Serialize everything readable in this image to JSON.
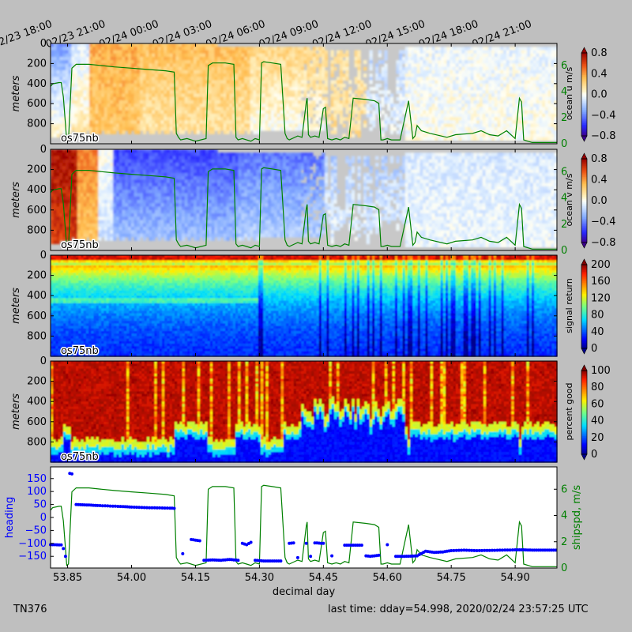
{
  "figure": {
    "top_time_labels": [
      "02/23 18:00",
      "02/23 21:00",
      "02/24 00:00",
      "02/24 03:00",
      "02/24 06:00",
      "02/24 09:00",
      "02/24 12:00",
      "02/24 15:00",
      "02/24 18:00",
      "02/24 21:00"
    ],
    "footer_left": "TN376",
    "footer_right": "last time: dday=54.998,  2020/02/24 23:57:25 UTC",
    "xlabel": "decimal day"
  },
  "chart_data": [
    {
      "type": "heatmap",
      "title": "",
      "ylabel": "meters",
      "instrument_label": "os75nb",
      "ylim": [
        1000,
        0
      ],
      "yticks": [
        0,
        200,
        400,
        600,
        800
      ],
      "colorbar": {
        "label": "ocean u m/s",
        "ticks": [
          "0.8",
          "0.4",
          "0.0",
          "−0.4",
          "−0.8"
        ],
        "range": [
          -0.8,
          0.8
        ],
        "colormap": "bwr"
      },
      "overlay_axis": {
        "ticks": [
          "0",
          "2",
          "4",
          "6"
        ],
        "range": [
          0,
          7.7
        ],
        "color": "#008000"
      },
      "colors": {
        "missing": "#c8c8c8",
        "overlay": "#008000"
      }
    },
    {
      "type": "heatmap",
      "title": "",
      "ylabel": "meters",
      "instrument_label": "os75nb",
      "ylim": [
        1000,
        0
      ],
      "yticks": [
        0,
        200,
        400,
        600,
        800
      ],
      "colorbar": {
        "label": "ocean v m/s",
        "ticks": [
          "0.8",
          "0.4",
          "0.0",
          "−0.4",
          "−0.8"
        ],
        "range": [
          -0.8,
          0.8
        ],
        "colormap": "bwr"
      },
      "overlay_axis": {
        "ticks": [
          "0",
          "2",
          "4",
          "6"
        ],
        "range": [
          0,
          7.7
        ],
        "color": "#008000"
      },
      "colors": {
        "missing": "#c8c8c8",
        "overlay": "#008000"
      }
    },
    {
      "type": "heatmap",
      "title": "",
      "ylabel": "meters",
      "instrument_label": "os75nb",
      "ylim": [
        1000,
        0
      ],
      "yticks": [
        0,
        200,
        400,
        600,
        800
      ],
      "colorbar": {
        "label": "signal return",
        "ticks": [
          "200",
          "160",
          "120",
          "80",
          "40",
          "0"
        ],
        "range": [
          0,
          200
        ],
        "colormap": "jet"
      }
    },
    {
      "type": "heatmap",
      "title": "",
      "ylabel": "meters",
      "instrument_label": "os75nb",
      "ylim": [
        1000,
        0
      ],
      "yticks": [
        0,
        200,
        400,
        600,
        800
      ],
      "colorbar": {
        "label": "percent good",
        "ticks": [
          "100",
          "80",
          "60",
          "40",
          "20",
          "0"
        ],
        "range": [
          0,
          100
        ],
        "colormap": "jet"
      }
    },
    {
      "type": "scatter",
      "title": "",
      "xlabel": "decimal day",
      "xlim": [
        53.81,
        54.998
      ],
      "xticks": [
        "53.85",
        "54.00",
        "54.15",
        "54.30",
        "54.45",
        "54.60",
        "54.75",
        "54.90"
      ],
      "ylabel": "heading",
      "ylim": [
        -195,
        195
      ],
      "yticks": [
        "150",
        "100",
        "50",
        "0",
        "−50",
        "−100",
        "−150"
      ],
      "y2label": "shipspd, m/s",
      "y2lim": [
        0,
        7.7
      ],
      "y2ticks": [
        "0",
        "2",
        "4",
        "6"
      ],
      "colors": {
        "heading": "#0000ff",
        "shipspd": "#008000"
      },
      "shipspd": {
        "x": [
          53.81,
          53.815,
          53.83,
          53.835,
          53.84,
          53.848,
          53.852,
          53.86,
          53.87,
          53.9,
          53.93,
          53.96,
          54.0,
          54.04,
          54.08,
          54.1,
          54.105,
          54.11,
          54.115,
          54.13,
          54.15,
          54.175,
          54.18,
          54.19,
          54.22,
          54.24,
          54.245,
          54.25,
          54.26,
          54.27,
          54.28,
          54.29,
          54.3,
          54.305,
          54.31,
          54.33,
          54.35,
          54.36,
          54.365,
          54.37,
          54.39,
          54.4,
          54.41,
          54.412,
          54.415,
          54.42,
          54.43,
          54.44,
          54.45,
          54.455,
          54.46,
          54.47,
          54.48,
          54.49,
          54.5,
          54.51,
          54.52,
          54.55,
          54.57,
          54.58,
          54.585,
          54.59,
          54.6,
          54.61,
          54.63,
          54.65,
          54.66,
          54.665,
          54.67,
          54.68,
          54.7,
          54.74,
          54.76,
          54.8,
          54.82,
          54.84,
          54.86,
          54.88,
          54.9,
          54.91,
          54.915,
          54.92,
          54.94,
          54.96,
          54.98,
          54.998
        ],
        "y": [
          4.4,
          4.6,
          4.7,
          4.7,
          3.6,
          0.2,
          0.3,
          5.8,
          6.1,
          6.1,
          6.0,
          5.9,
          5.8,
          5.7,
          5.6,
          5.5,
          0.8,
          0.5,
          0.3,
          0.4,
          0.2,
          0.4,
          6.0,
          6.2,
          6.2,
          6.1,
          0.5,
          0.3,
          0.4,
          0.3,
          0.2,
          0.4,
          0.3,
          6.2,
          6.3,
          6.2,
          6.1,
          0.8,
          0.4,
          0.3,
          0.6,
          0.5,
          3.2,
          3.5,
          0.7,
          0.5,
          0.6,
          0.5,
          2.7,
          2.8,
          0.4,
          0.3,
          0.4,
          0.3,
          0.5,
          0.4,
          3.5,
          3.4,
          3.3,
          3.1,
          0.3,
          0.3,
          0.4,
          0.3,
          0.3,
          3.3,
          0.4,
          0.6,
          1.4,
          1.0,
          0.8,
          0.5,
          0.7,
          0.8,
          1.0,
          0.7,
          0.6,
          1.0,
          0.4,
          3.5,
          3.2,
          0.3,
          0.1,
          0.1,
          0.1,
          0.1
        ]
      },
      "heading": {
        "x": [
          53.81,
          53.82,
          53.83,
          53.835,
          53.84,
          53.845,
          53.855,
          53.86,
          53.87,
          53.88,
          53.9,
          53.92,
          53.95,
          53.98,
          54.0,
          54.03,
          54.06,
          54.09,
          54.1,
          54.12,
          54.14,
          54.16,
          54.17,
          54.19,
          54.21,
          54.23,
          54.25,
          54.26,
          54.27,
          54.28,
          54.29,
          54.31,
          54.33,
          54.35,
          54.37,
          54.38,
          54.39,
          54.41,
          54.42,
          54.43,
          54.45,
          54.47,
          54.5,
          54.52,
          54.54,
          54.55,
          54.56,
          54.58,
          54.6,
          54.62,
          54.64,
          54.66,
          54.67,
          54.69,
          54.71,
          54.73,
          54.75,
          54.78,
          54.81,
          54.84,
          54.87,
          54.9,
          54.92,
          54.94,
          54.96,
          54.98,
          54.995
        ],
        "y": [
          -105,
          -105,
          -106,
          -106,
          -120,
          -150,
          170,
          168,
          50,
          49,
          48,
          46,
          44,
          42,
          40,
          38,
          37,
          36,
          35,
          -140,
          -85,
          -90,
          -165,
          -164,
          -165,
          -162,
          -165,
          -100,
          -105,
          -96,
          -165,
          -168,
          -168,
          -168,
          -100,
          -98,
          -155,
          -100,
          -150,
          -98,
          -100,
          -148,
          -107,
          -107,
          -107,
          -148,
          -150,
          -146,
          -105,
          -150,
          -150,
          -149,
          -148,
          -130,
          -135,
          -133,
          -128,
          -126,
          -128,
          -127,
          -126,
          -125,
          -125,
          -126,
          -126,
          -126,
          -126
        ]
      }
    }
  ]
}
